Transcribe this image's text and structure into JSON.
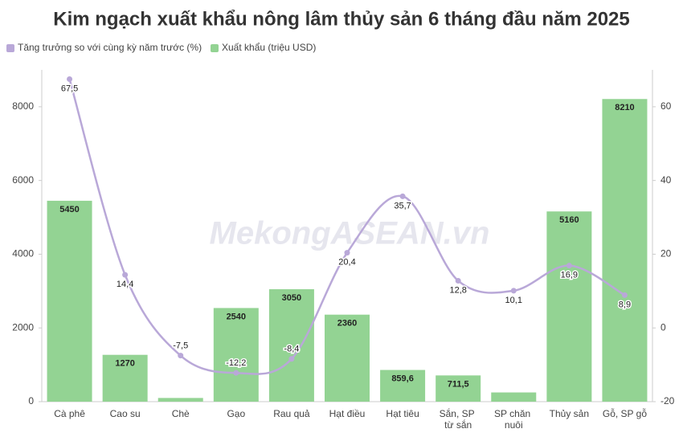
{
  "chart_data": {
    "type": "bar_line",
    "title": "Kim ngạch xuất khẩu nông lâm thủy sản 6 tháng đầu năm 2025",
    "watermark": "MekongASEAN.vn",
    "categories": [
      "Cà phê",
      "Cao su",
      "Chè",
      "Gạo",
      "Rau quả",
      "Hạt điều",
      "Hạt tiêu",
      "Sắn, SP từ sắn",
      "SP chăn nuôi",
      "Thủy sản",
      "Gỗ, SP gỗ"
    ],
    "series": [
      {
        "name": "Tăng trưởng so với cùng kỳ năm trước (%)",
        "type": "line",
        "axis": "y2",
        "color": "#b9a8d8",
        "values": [
          67.5,
          14.4,
          -7.5,
          -12.2,
          -8.4,
          20.4,
          35.7,
          12.8,
          10.1,
          16.9,
          8.9
        ],
        "value_labels": [
          "67,5",
          "14,4",
          "-7,5",
          "-12,2",
          "-8,4",
          "20,4",
          "35,7",
          "12,8",
          "10,1",
          "16,9",
          "8,9"
        ]
      },
      {
        "name": "Xuất khẩu (triệu USD)",
        "type": "bar",
        "color": "#93d393",
        "values": [
          5450,
          1270,
          100,
          2540,
          3050,
          2360,
          859.6,
          711.5,
          250,
          5160,
          8210
        ],
        "value_labels": [
          "5450",
          "1270",
          null,
          "2540",
          "3050",
          "2360",
          "859,6",
          "711,5",
          null,
          "5160",
          "8210"
        ]
      }
    ],
    "ylim": [
      0,
      9000
    ],
    "yticks": [
      0,
      2000,
      4000,
      6000,
      8000
    ],
    "y2lim": [
      -20,
      70
    ],
    "y2ticks": [
      -20,
      0,
      20,
      40,
      60
    ],
    "legend": "top-left"
  }
}
